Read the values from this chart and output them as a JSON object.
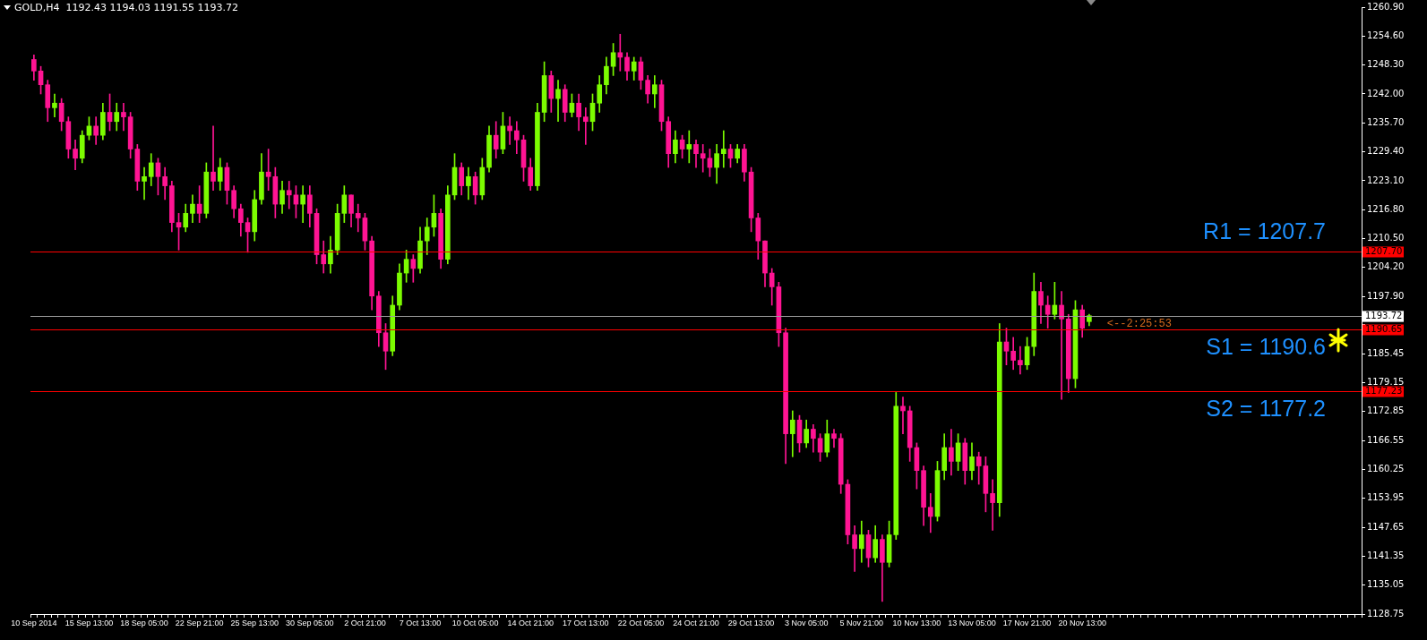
{
  "chart_data": {
    "type": "candlestick",
    "title": "GOLD,H4  1192.43 1194.03 1191.55 1193.72",
    "categories": [
      "10 Sep 2014",
      null,
      null,
      null,
      null,
      null,
      null,
      null,
      "15 Sep 13:00",
      null,
      null,
      null,
      null,
      null,
      null,
      null,
      "18 Sep 05:00",
      null,
      null,
      null,
      null,
      null,
      null,
      null,
      "22 Sep 21:00",
      null,
      null,
      null,
      null,
      null,
      null,
      null,
      "25 Sep 13:00",
      null,
      null,
      null,
      null,
      null,
      null,
      null,
      "30 Sep 05:00",
      null,
      null,
      null,
      null,
      null,
      null,
      null,
      "2 Oct 21:00",
      null,
      null,
      null,
      null,
      null,
      null,
      null,
      "7 Oct 13:00",
      null,
      null,
      null,
      null,
      null,
      null,
      null,
      "10 Oct 05:00",
      null,
      null,
      null,
      null,
      null,
      null,
      null,
      "14 Oct 21:00",
      null,
      null,
      null,
      null,
      null,
      null,
      null,
      "17 Oct 13:00",
      null,
      null,
      null,
      null,
      null,
      null,
      null,
      "22 Oct 05:00",
      null,
      null,
      null,
      null,
      null,
      null,
      null,
      "24 Oct 21:00",
      null,
      null,
      null,
      null,
      null,
      null,
      null,
      "29 Oct 13:00",
      null,
      null,
      null,
      null,
      null,
      null,
      null,
      "3 Nov 05:00",
      null,
      null,
      null,
      null,
      null,
      null,
      null,
      "5 Nov 21:00",
      null,
      null,
      null,
      null,
      null,
      null,
      null,
      "10 Nov 13:00",
      null,
      null,
      null,
      null,
      null,
      null,
      null,
      "13 Nov 05:00",
      null,
      null,
      null,
      null,
      null,
      null,
      null,
      "17 Nov 21:00",
      null,
      null,
      null,
      null,
      null,
      null,
      null,
      "20 Nov 13:00",
      null,
      null,
      null,
      null,
      null,
      null,
      null,
      null,
      null,
      null,
      null,
      null,
      null,
      null,
      null,
      null,
      null,
      null,
      null,
      null,
      null,
      null,
      null,
      null,
      null,
      null,
      null,
      null,
      null,
      null,
      null,
      null,
      null,
      null,
      null,
      null,
      null,
      null,
      null,
      null
    ],
    "ohlc": [
      [
        1249.5,
        1250.5,
        1245,
        1247
      ],
      [
        1247,
        1248,
        1242,
        1244
      ],
      [
        1244,
        1245,
        1236,
        1239
      ],
      [
        1239,
        1242,
        1237,
        1240
      ],
      [
        1240,
        1241,
        1234,
        1236
      ],
      [
        1236,
        1237,
        1228,
        1230
      ],
      [
        1230,
        1232,
        1225.5,
        1228
      ],
      [
        1228,
        1234,
        1227,
        1233
      ],
      [
        1233,
        1237,
        1232,
        1235
      ],
      [
        1235,
        1237,
        1231,
        1233
      ],
      [
        1233,
        1240,
        1232,
        1238
      ],
      [
        1238,
        1242,
        1234,
        1236
      ],
      [
        1236,
        1240,
        1234,
        1238
      ],
      [
        1238,
        1240,
        1234,
        1237
      ],
      [
        1237,
        1238,
        1228,
        1230
      ],
      [
        1230,
        1231,
        1221,
        1223
      ],
      [
        1223,
        1226,
        1219,
        1224
      ],
      [
        1224,
        1229,
        1222,
        1227
      ],
      [
        1227,
        1228,
        1220,
        1224
      ],
      [
        1224,
        1226,
        1219,
        1222
      ],
      [
        1222,
        1223,
        1212,
        1214
      ],
      [
        1214,
        1216,
        1208,
        1213
      ],
      [
        1213,
        1218,
        1212,
        1216
      ],
      [
        1216,
        1220,
        1214,
        1218
      ],
      [
        1218,
        1222,
        1214,
        1216
      ],
      [
        1216,
        1227,
        1215,
        1225
      ],
      [
        1225,
        1235,
        1221,
        1223
      ],
      [
        1223,
        1228,
        1221,
        1226
      ],
      [
        1226,
        1227,
        1218,
        1221
      ],
      [
        1221,
        1222,
        1215,
        1217
      ],
      [
        1217,
        1218,
        1211,
        1214
      ],
      [
        1214,
        1215,
        1207.5,
        1212
      ],
      [
        1212,
        1221,
        1210,
        1219
      ],
      [
        1219,
        1229,
        1218,
        1225
      ],
      [
        1225,
        1230,
        1221,
        1224
      ],
      [
        1224,
        1226,
        1215,
        1218
      ],
      [
        1218,
        1223,
        1216,
        1221
      ],
      [
        1221,
        1223,
        1217,
        1220
      ],
      [
        1220,
        1222,
        1215,
        1218
      ],
      [
        1218,
        1222,
        1214,
        1220
      ],
      [
        1220,
        1222,
        1213,
        1216
      ],
      [
        1216,
        1217,
        1205,
        1207
      ],
      [
        1207,
        1210,
        1203,
        1205
      ],
      [
        1205,
        1211,
        1203,
        1208
      ],
      [
        1208,
        1218,
        1207,
        1216
      ],
      [
        1216,
        1222,
        1214,
        1220
      ],
      [
        1220,
        1220,
        1213,
        1216
      ],
      [
        1216,
        1218,
        1212,
        1215
      ],
      [
        1215,
        1216,
        1208,
        1210
      ],
      [
        1210,
        1211,
        1195,
        1198
      ],
      [
        1198,
        1199,
        1187,
        1190
      ],
      [
        1190,
        1192,
        1182,
        1186
      ],
      [
        1186,
        1198,
        1185,
        1196
      ],
      [
        1196,
        1205,
        1195,
        1203
      ],
      [
        1203,
        1208,
        1201,
        1206
      ],
      [
        1206,
        1207,
        1201,
        1204
      ],
      [
        1204,
        1213,
        1203,
        1210
      ],
      [
        1210,
        1215,
        1207,
        1213
      ],
      [
        1213,
        1220,
        1211,
        1216
      ],
      [
        1216,
        1217,
        1204,
        1206
      ],
      [
        1206,
        1222,
        1205,
        1220
      ],
      [
        1220,
        1229,
        1219,
        1226
      ],
      [
        1226,
        1227,
        1220,
        1222
      ],
      [
        1222,
        1226,
        1219,
        1224
      ],
      [
        1224,
        1225,
        1218,
        1220
      ],
      [
        1220,
        1228,
        1219,
        1226
      ],
      [
        1226,
        1235,
        1225,
        1233
      ],
      [
        1233,
        1236,
        1228,
        1230
      ],
      [
        1230,
        1238,
        1229,
        1235
      ],
      [
        1235,
        1237,
        1231,
        1234
      ],
      [
        1234,
        1236,
        1229,
        1232
      ],
      [
        1232,
        1233,
        1223,
        1226
      ],
      [
        1226,
        1228,
        1221,
        1222
      ],
      [
        1222,
        1240,
        1221,
        1238
      ],
      [
        1238,
        1249,
        1236,
        1246
      ],
      [
        1246,
        1247,
        1238,
        1241
      ],
      [
        1241,
        1245,
        1236,
        1243
      ],
      [
        1243,
        1244,
        1236,
        1238
      ],
      [
        1238,
        1242,
        1237,
        1240
      ],
      [
        1240,
        1242,
        1234,
        1237
      ],
      [
        1237,
        1239,
        1231,
        1236
      ],
      [
        1236,
        1242,
        1234,
        1240
      ],
      [
        1240,
        1246,
        1238,
        1244
      ],
      [
        1244,
        1250,
        1242,
        1248
      ],
      [
        1248,
        1253,
        1246,
        1251
      ],
      [
        1251,
        1255,
        1247,
        1250
      ],
      [
        1250,
        1251,
        1245,
        1247
      ],
      [
        1247,
        1250,
        1245,
        1249
      ],
      [
        1249,
        1250,
        1243,
        1245
      ],
      [
        1245,
        1246,
        1240,
        1242
      ],
      [
        1242,
        1246,
        1239,
        1244
      ],
      [
        1244,
        1245,
        1234,
        1236
      ],
      [
        1236,
        1237,
        1226,
        1229
      ],
      [
        1229,
        1234,
        1227,
        1232
      ],
      [
        1232,
        1233,
        1228,
        1230
      ],
      [
        1230,
        1234,
        1227,
        1231
      ],
      [
        1231,
        1232,
        1226,
        1229
      ],
      [
        1229,
        1231,
        1225,
        1228
      ],
      [
        1228,
        1230,
        1224,
        1226
      ],
      [
        1226,
        1231,
        1222.5,
        1229
      ],
      [
        1229,
        1234,
        1226,
        1230
      ],
      [
        1230,
        1231,
        1226,
        1228
      ],
      [
        1228,
        1231,
        1227,
        1230
      ],
      [
        1230,
        1231,
        1223,
        1225
      ],
      [
        1225,
        1226,
        1212,
        1215
      ],
      [
        1215,
        1216,
        1206,
        1210
      ],
      [
        1210,
        1210,
        1200,
        1203
      ],
      [
        1203,
        1204,
        1196,
        1200
      ],
      [
        1200,
        1201,
        1187,
        1190
      ],
      [
        1190,
        1191,
        1161.5,
        1168
      ],
      [
        1168,
        1173,
        1163,
        1171
      ],
      [
        1171,
        1172,
        1164,
        1166
      ],
      [
        1166,
        1171,
        1165,
        1169
      ],
      [
        1169,
        1170,
        1164,
        1167
      ],
      [
        1167,
        1168,
        1162,
        1164
      ],
      [
        1164,
        1171,
        1163,
        1168
      ],
      [
        1168,
        1169,
        1165,
        1167
      ],
      [
        1167,
        1168,
        1155,
        1157
      ],
      [
        1157,
        1158,
        1144,
        1146
      ],
      [
        1146,
        1148,
        1138,
        1143
      ],
      [
        1143,
        1149,
        1140,
        1146
      ],
      [
        1146,
        1147,
        1139,
        1141
      ],
      [
        1141,
        1148,
        1140,
        1145
      ],
      [
        1145,
        1146,
        1131.5,
        1140
      ],
      [
        1140,
        1149,
        1139,
        1146
      ],
      [
        1146,
        1177,
        1145,
        1174
      ],
      [
        1174,
        1176,
        1168,
        1173
      ],
      [
        1173,
        1174,
        1162,
        1165
      ],
      [
        1165,
        1166,
        1156,
        1160
      ],
      [
        1160,
        1161,
        1148,
        1152
      ],
      [
        1152,
        1155,
        1146.5,
        1150
      ],
      [
        1150,
        1162,
        1149,
        1160
      ],
      [
        1160,
        1168,
        1158,
        1165
      ],
      [
        1165,
        1169,
        1159,
        1162
      ],
      [
        1162,
        1168,
        1160,
        1166
      ],
      [
        1166,
        1167,
        1157,
        1160
      ],
      [
        1160,
        1166,
        1158,
        1163
      ],
      [
        1163,
        1164,
        1157,
        1161
      ],
      [
        1161,
        1163,
        1151,
        1155
      ],
      [
        1155,
        1158,
        1147,
        1153
      ],
      [
        1153,
        1192,
        1150,
        1188
      ],
      [
        1188,
        1191,
        1183,
        1186
      ],
      [
        1186,
        1189,
        1182,
        1184
      ],
      [
        1184,
        1187,
        1181,
        1183
      ],
      [
        1183,
        1189,
        1182,
        1187
      ],
      [
        1187,
        1203,
        1185,
        1199
      ],
      [
        1199,
        1201,
        1192,
        1196
      ],
      [
        1196,
        1198,
        1191,
        1194
      ],
      [
        1194,
        1201,
        1193,
        1196
      ],
      [
        1196,
        1199,
        1175.5,
        1193
      ],
      [
        1193,
        1194,
        1177,
        1180
      ],
      [
        1180,
        1197,
        1178,
        1195
      ],
      [
        1195,
        1196,
        1189,
        1191
      ],
      [
        1192.43,
        1194.03,
        1191.55,
        1193.72
      ],
      null,
      null,
      null,
      null,
      null,
      null,
      null,
      null,
      null,
      null,
      null,
      null,
      null,
      null,
      null,
      null,
      null,
      null,
      null,
      null,
      null,
      null,
      null,
      null,
      null,
      null,
      null,
      null,
      null,
      null,
      null,
      null,
      null,
      null,
      null,
      null,
      null,
      null,
      null
    ],
    "colors": [
      "#ff1493",
      "#ff1493",
      "#ff1493",
      "#7cfc00",
      "#ff1493",
      "#ff1493",
      "#ff1493",
      "#7cfc00",
      "#7cfc00",
      "#ff1493",
      "#7cfc00",
      "#ff1493",
      "#7cfc00",
      "#ff1493",
      "#ff1493",
      "#ff1493",
      "#7cfc00",
      "#7cfc00",
      "#ff1493",
      "#ff1493",
      "#ff1493",
      "#ff1493",
      "#7cfc00",
      "#7cfc00",
      "#ff1493",
      "#7cfc00",
      "#ff1493",
      "#7cfc00",
      "#ff1493",
      "#ff1493",
      "#ff1493",
      "#ff1493",
      "#7cfc00",
      "#7cfc00",
      "#ff1493",
      "#ff1493",
      "#7cfc00",
      "#ff1493",
      "#ff1493",
      "#7cfc00",
      "#ff1493",
      "#ff1493",
      "#ff1493",
      "#7cfc00",
      "#7cfc00",
      "#7cfc00",
      "#ff1493",
      "#ff1493",
      "#ff1493",
      "#ff1493",
      "#ff1493",
      "#ff1493",
      "#7cfc00",
      "#7cfc00",
      "#7cfc00",
      "#ff1493",
      "#7cfc00",
      "#7cfc00",
      "#7cfc00",
      "#ff1493",
      "#7cfc00",
      "#7cfc00",
      "#ff1493",
      "#7cfc00",
      "#ff1493",
      "#7cfc00",
      "#7cfc00",
      "#ff1493",
      "#7cfc00",
      "#ff1493",
      "#ff1493",
      "#ff1493",
      "#ff1493",
      "#7cfc00",
      "#7cfc00",
      "#ff1493",
      "#7cfc00",
      "#ff1493",
      "#7cfc00",
      "#ff1493",
      "#ff1493",
      "#7cfc00",
      "#7cfc00",
      "#7cfc00",
      "#7cfc00",
      "#ff1493",
      "#ff1493",
      "#7cfc00",
      "#ff1493",
      "#ff1493",
      "#7cfc00",
      "#ff1493",
      "#ff1493",
      "#7cfc00",
      "#ff1493",
      "#7cfc00",
      "#ff1493",
      "#ff1493",
      "#ff1493",
      "#7cfc00",
      "#7cfc00",
      "#ff1493",
      "#7cfc00",
      "#ff1493",
      "#ff1493",
      "#ff1493",
      "#ff1493",
      "#ff1493",
      "#ff1493",
      "#ff1493",
      "#7cfc00",
      "#ff1493",
      "#7cfc00",
      "#ff1493",
      "#ff1493",
      "#7cfc00",
      "#ff1493",
      "#ff1493",
      "#ff1493",
      "#ff1493",
      "#7cfc00",
      "#ff1493",
      "#7cfc00",
      "#ff1493",
      "#7cfc00",
      "#7cfc00",
      "#ff1493",
      "#ff1493",
      "#ff1493",
      "#ff1493",
      "#ff1493",
      "#7cfc00",
      "#7cfc00",
      "#ff1493",
      "#7cfc00",
      "#ff1493",
      "#7cfc00",
      "#ff1493",
      "#ff1493",
      "#ff1493",
      "#7cfc00",
      "#ff1493",
      "#ff1493",
      "#ff1493",
      "#7cfc00",
      "#7cfc00",
      "#ff1493",
      "#ff1493",
      "#7cfc00",
      "#ff1493",
      "#ff1493",
      "#7cfc00",
      "#ff1493",
      "#7cfc00",
      null,
      null,
      null,
      null,
      null,
      null,
      null,
      null,
      null,
      null,
      null,
      null,
      null,
      null,
      null,
      null,
      null,
      null,
      null,
      null,
      null,
      null,
      null,
      null,
      null,
      null,
      null,
      null,
      null,
      null,
      null,
      null,
      null,
      null,
      null,
      null,
      null,
      null,
      null
    ],
    "ylim": [
      1128.75,
      1260.9
    ],
    "yticks": [
      {
        "value": 1260.9,
        "label": "1260.90"
      },
      {
        "value": 1254.6,
        "label": "1254.60"
      },
      {
        "value": 1248.3,
        "label": "1248.30"
      },
      {
        "value": 1242,
        "label": "1242.00"
      },
      {
        "value": 1235.7,
        "label": "1235.70"
      },
      {
        "value": 1229.4,
        "label": "1229.40"
      },
      {
        "value": 1223.1,
        "label": "1223.10"
      },
      {
        "value": 1216.8,
        "label": "1216.80"
      },
      {
        "value": 1210.5,
        "label": "1210.50"
      },
      {
        "value": 1204.2,
        "label": "1204.20"
      },
      {
        "value": 1197.9,
        "label": "1197.90"
      },
      {
        "value": 1191.75,
        "label": null
      },
      {
        "value": 1185.45,
        "label": "1185.45"
      },
      {
        "value": 1179.15,
        "label": "1179.15"
      },
      {
        "value": 1172.85,
        "label": "1172.85"
      },
      {
        "value": 1166.55,
        "label": "1166.55"
      },
      {
        "value": 1160.25,
        "label": "1160.25"
      },
      {
        "value": 1153.95,
        "label": "1153.95"
      },
      {
        "value": 1147.65,
        "label": "1147.65"
      },
      {
        "value": 1141.35,
        "label": "1141.35"
      },
      {
        "value": 1135.05,
        "label": "1135.05"
      },
      {
        "value": 1128.75,
        "label": "1128.75"
      }
    ],
    "grid": false,
    "legend": false,
    "ref_lines": [
      {
        "axis": "y",
        "value": 1207.7,
        "label": "1207.70",
        "color": "#ff0000"
      },
      {
        "axis": "y",
        "value": 1193.72,
        "label": "1193.72",
        "color": "#9a9a9a"
      },
      {
        "axis": "y",
        "value": 1190.65,
        "label": "1190.65",
        "color": "#ff0000"
      },
      {
        "axis": "y",
        "value": 1177.23,
        "label": "1177.23",
        "color": "#ff0000"
      }
    ],
    "annotations": [
      {
        "text": "R1 = 1207.7",
        "y": 1207.7
      },
      {
        "text": "S1 = 1190.6",
        "y": 1190.65
      },
      {
        "text": "S2 = 1177.2",
        "y": 1177.23
      },
      {
        "text": "<--2:25:53",
        "y": 1193.72
      }
    ]
  }
}
